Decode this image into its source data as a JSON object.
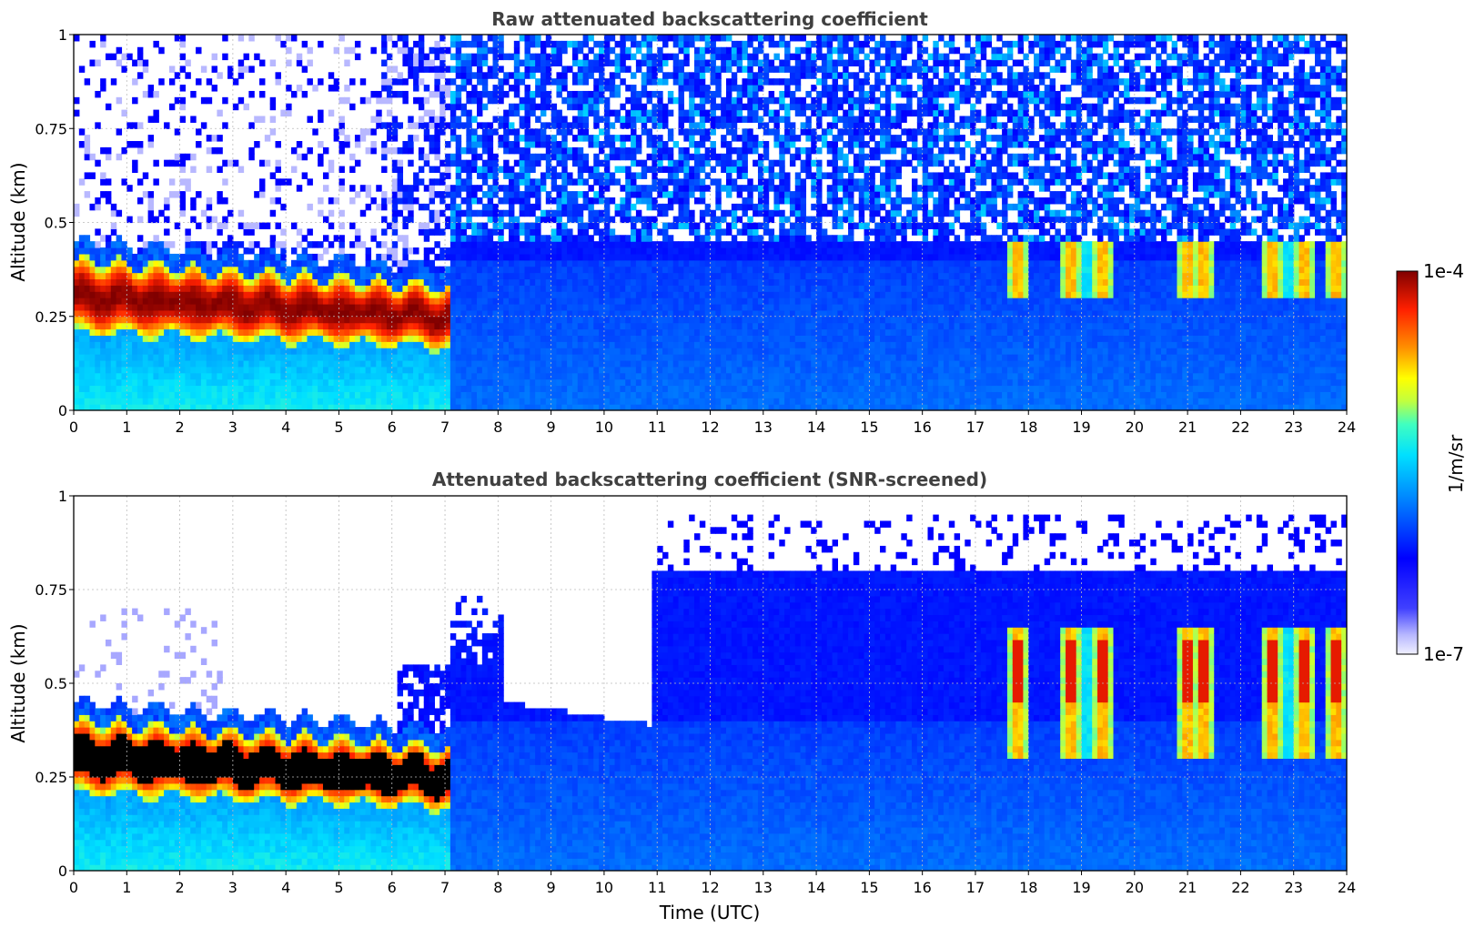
{
  "chart_data": [
    {
      "type": "heatmap",
      "title": "Raw attenuated backscattering coefficient",
      "xlabel": "",
      "ylabel": "Altitude (km)",
      "xlim": [
        0,
        24
      ],
      "ylim": [
        0,
        1
      ],
      "xticks": [
        "0",
        "1",
        "2",
        "3",
        "4",
        "5",
        "6",
        "7",
        "8",
        "9",
        "10",
        "11",
        "12",
        "13",
        "14",
        "15",
        "16",
        "17",
        "18",
        "19",
        "20",
        "21",
        "22",
        "23",
        "24"
      ],
      "yticks": [
        "0",
        "0.25",
        "0.5",
        "0.75",
        "1"
      ],
      "grid": true,
      "features": {
        "fog_layer": {
          "hours": [
            0,
            7.0
          ],
          "base_km": [
            0.2,
            0.16
          ],
          "top_km": [
            0.4,
            0.33
          ]
        },
        "convective_plumes_hours": [
          17.8,
          18.8,
          19.4,
          21.0,
          21.3,
          22.6,
          23.2,
          23.8
        ]
      }
    },
    {
      "type": "heatmap",
      "title": "Attenuated backscattering coefficient (SNR-screened)",
      "xlabel": "Time (UTC)",
      "ylabel": "Altitude (km)",
      "xlim": [
        0,
        24
      ],
      "ylim": [
        0,
        1
      ],
      "xticks": [
        "0",
        "1",
        "2",
        "3",
        "4",
        "5",
        "6",
        "7",
        "8",
        "9",
        "10",
        "11",
        "12",
        "13",
        "14",
        "15",
        "16",
        "17",
        "18",
        "19",
        "20",
        "21",
        "22",
        "23",
        "24"
      ],
      "yticks": [
        "0",
        "0.25",
        "0.5",
        "0.75",
        "1"
      ],
      "grid": true
    }
  ],
  "colorbar": {
    "label": "1/m/sr",
    "max_label": "1e-4",
    "min_label": "1e-7",
    "scale": "log",
    "range": [
      1e-07,
      0.0001
    ],
    "colormap": "jet"
  }
}
